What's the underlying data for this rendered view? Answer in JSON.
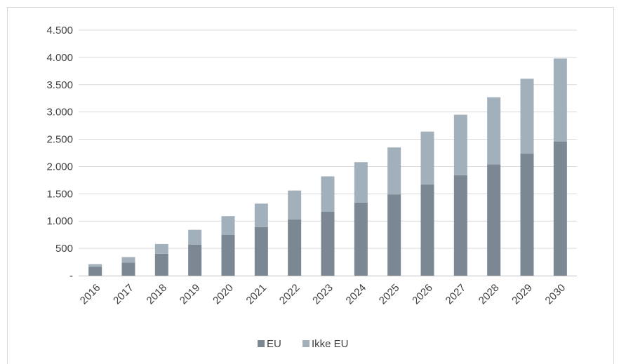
{
  "chart_data": {
    "type": "bar",
    "stacked": true,
    "title": "",
    "xlabel": "",
    "ylabel": "",
    "categories": [
      "2016",
      "2017",
      "2018",
      "2019",
      "2020",
      "2021",
      "2022",
      "2023",
      "2024",
      "2025",
      "2026",
      "2027",
      "2028",
      "2029",
      "2030"
    ],
    "series": [
      {
        "name": "EU",
        "color": "#7c8794",
        "values": [
          160,
          240,
          400,
          570,
          750,
          890,
          1030,
          1170,
          1340,
          1490,
          1670,
          1840,
          2040,
          2240,
          2460
        ]
      },
      {
        "name": "Ikke EU",
        "color": "#a1b0bb",
        "values": [
          50,
          100,
          180,
          270,
          340,
          430,
          530,
          650,
          740,
          860,
          970,
          1110,
          1230,
          1370,
          1520
        ]
      }
    ],
    "ylim": [
      0,
      4500
    ],
    "y_ticks": [
      {
        "value": 0,
        "label": "-"
      },
      {
        "value": 500,
        "label": "500"
      },
      {
        "value": 1000,
        "label": "1.000"
      },
      {
        "value": 1500,
        "label": "1.500"
      },
      {
        "value": 2000,
        "label": "2.000"
      },
      {
        "value": 2500,
        "label": "2.500"
      },
      {
        "value": 3000,
        "label": "3.000"
      },
      {
        "value": 3500,
        "label": "3.500"
      },
      {
        "value": 4000,
        "label": "4.000"
      },
      {
        "value": 4500,
        "label": "4.500"
      }
    ],
    "grid": true,
    "legend_position": "bottom",
    "gridline_color": "#d9d9d9",
    "axis_color": "#bfbfbf",
    "text_color": "#404040"
  }
}
